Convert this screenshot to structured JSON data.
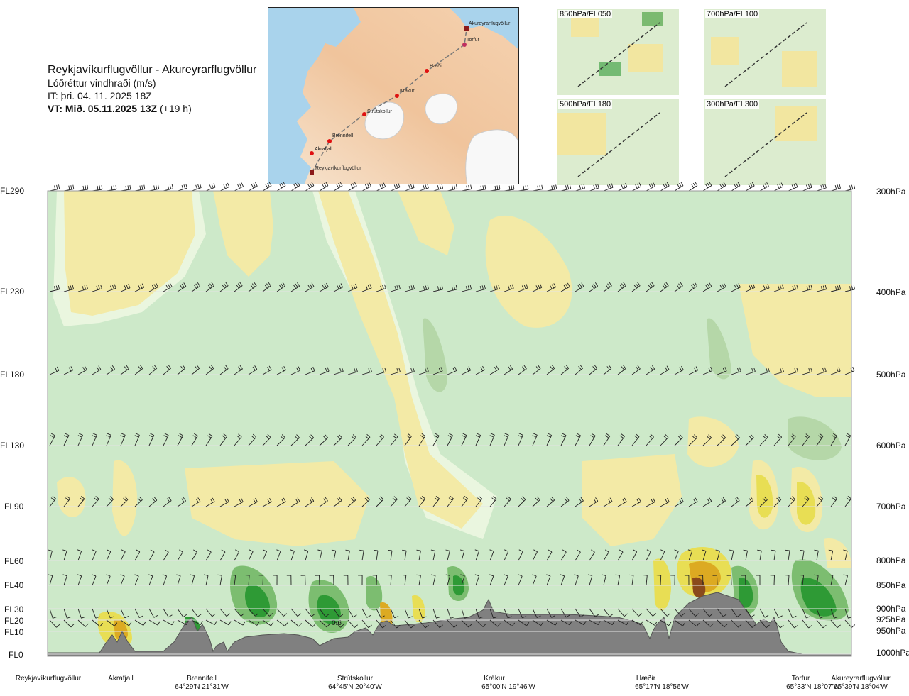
{
  "header": {
    "route": "Reykjavíkurflugvöllur - Akureyrarflugvöllur",
    "variable": "Lóðréttur vindhraði (m/s)",
    "it": "IT: þri. 04. 11. 2025 18Z",
    "vt_bold": "VT: Mið. 05.11.2025 13Z",
    "vt_lead": "(+19 h)"
  },
  "map": {
    "stations": [
      {
        "name": "Akureyrarflugvöllur"
      },
      {
        "name": "Torfur"
      },
      {
        "name": "Hæðir"
      },
      {
        "name": "Krákur"
      },
      {
        "name": "Strútskollur"
      },
      {
        "name": "Brennifell"
      },
      {
        "name": "Akrafjall"
      },
      {
        "name": "Reykjavíkurflugvöllur"
      }
    ]
  },
  "thumbnails": [
    {
      "label": "850hPa/FL050"
    },
    {
      "label": "700hPa/FL100"
    },
    {
      "label": "500hPa/FL180"
    },
    {
      "label": "300hPa/FL300"
    }
  ],
  "colors": {
    "neutral": "#cde9c9",
    "pale_neutral": "#eaf6df",
    "up_weak": "#f3eaa6",
    "up_moderate": "#e8de54",
    "up_strong": "#dcaa22",
    "up_extreme": "#8a4a1c",
    "down_weak": "#b5d7a8",
    "down_moderate": "#7cbd70",
    "down_strong": "#2e9a35",
    "terrain": "#808080"
  },
  "chart_data": {
    "type": "heatmap",
    "title": "Lóðréttur vindhraði (m/s)",
    "y_levels_left": [
      "FL290",
      "FL230",
      "FL180",
      "FL130",
      "FL90",
      "FL60",
      "FL40",
      "FL30",
      "FL20",
      "FL10",
      "FL0"
    ],
    "y_levels_right": [
      "300hPa",
      "400hPa",
      "500hPa",
      "600hPa",
      "700hPa",
      "800hPa",
      "850hPa",
      "900hPa",
      "925hPa",
      "950hPa",
      "1000hPa"
    ],
    "flight_levels": [
      29000,
      23000,
      18000,
      13000,
      9000,
      6000,
      4000,
      3000,
      2000,
      1000,
      0
    ],
    "x_locations": [
      {
        "name": "Reykjavíkurflugvöllur",
        "coord": ""
      },
      {
        "name": "Akrafjall",
        "coord": ""
      },
      {
        "name": "Brennifell",
        "coord": "64°29'N 21°31'W"
      },
      {
        "name": "Strútskollur",
        "coord": "64°45'N 20°40'W"
      },
      {
        "name": "Krákur",
        "coord": "65°00'N 19°46'W"
      },
      {
        "name": "Hæðir",
        "coord": "65°17'N 18°56'W"
      },
      {
        "name": "Torfur",
        "coord": "65°33'N 18°07'W"
      },
      {
        "name": "Akureyrarflugvöllur",
        "coord": "65°39'N 18°04'W"
      }
    ],
    "annotation": "0.6",
    "grid": true
  }
}
